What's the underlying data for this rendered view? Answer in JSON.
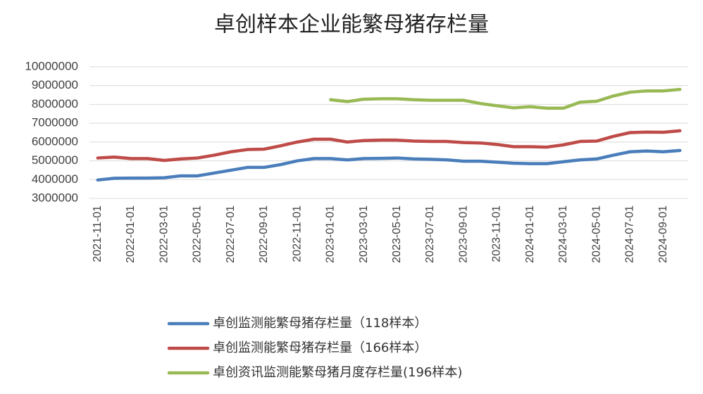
{
  "chart_data": {
    "type": "line",
    "title": "卓创样本企业能繁母猪存栏量",
    "categories": [
      "2021-11-01",
      null,
      "2022-01-01",
      null,
      "2022-03-01",
      null,
      "2022-05-01",
      null,
      "2022-07-01",
      null,
      "2022-09-01",
      null,
      "2022-11-01",
      null,
      "2023-01-01",
      null,
      "2023-03-01",
      null,
      "2023-05-01",
      null,
      "2023-07-01",
      null,
      "2023-09-01",
      null,
      "2023-11-01",
      null,
      "2024-01-01",
      null,
      "2024-03-01",
      null,
      "2024-05-01",
      null,
      "2024-07-01",
      null,
      "2024-09-01",
      null
    ],
    "series": [
      {
        "name": "卓创监测能繁母猪存栏量（118样本）",
        "color": "#4a7ebb",
        "values": [
          3980000,
          4070000,
          4080000,
          4080000,
          4100000,
          4200000,
          4200000,
          4350000,
          4500000,
          4650000,
          4650000,
          4800000,
          5000000,
          5120000,
          5120000,
          5050000,
          5120000,
          5130000,
          5150000,
          5100000,
          5080000,
          5050000,
          4980000,
          4980000,
          4930000,
          4870000,
          4850000,
          4850000,
          4950000,
          5050000,
          5100000,
          5300000,
          5480000,
          5520000,
          5480000,
          5550000
        ]
      },
      {
        "name": "卓创监测能繁母猪存栏量（166样本）",
        "color": "#be4b48",
        "values": [
          5150000,
          5200000,
          5120000,
          5120000,
          5020000,
          5100000,
          5150000,
          5300000,
          5480000,
          5600000,
          5620000,
          5800000,
          6000000,
          6150000,
          6150000,
          6000000,
          6080000,
          6100000,
          6100000,
          6050000,
          6030000,
          6030000,
          5970000,
          5950000,
          5870000,
          5750000,
          5750000,
          5730000,
          5850000,
          6030000,
          6050000,
          6300000,
          6500000,
          6530000,
          6520000,
          6600000
        ]
      },
      {
        "name": "卓创资讯监测能繁母猪月度存栏量(196样本)",
        "color": "#98b954",
        "values": [
          null,
          null,
          null,
          null,
          null,
          null,
          null,
          null,
          null,
          null,
          null,
          null,
          null,
          null,
          8250000,
          8150000,
          8280000,
          8300000,
          8300000,
          8250000,
          8220000,
          8220000,
          8220000,
          8050000,
          7930000,
          7820000,
          7880000,
          7800000,
          7800000,
          8120000,
          8170000,
          8450000,
          8650000,
          8720000,
          8720000,
          8800000
        ]
      }
    ],
    "ylim": [
      3000000,
      10000000
    ],
    "yticks": [
      3000000,
      4000000,
      5000000,
      6000000,
      7000000,
      8000000,
      9000000,
      10000000
    ],
    "grid": true
  }
}
